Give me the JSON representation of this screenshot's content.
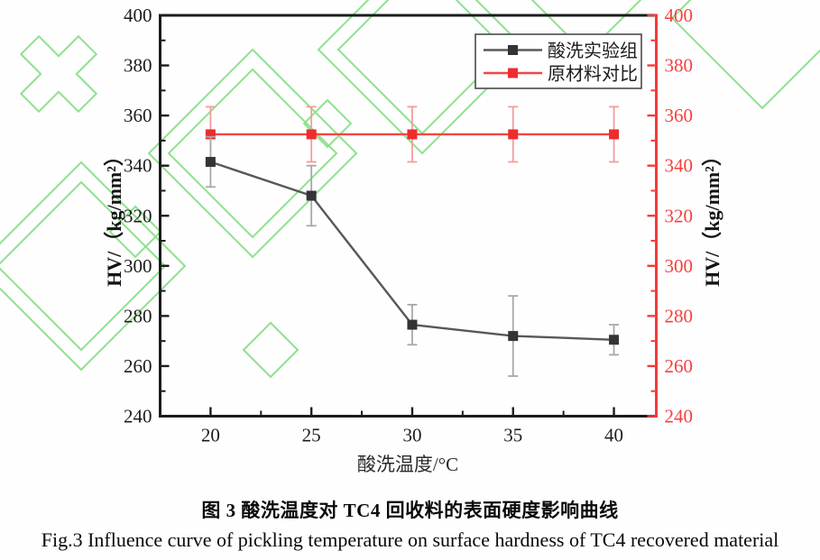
{
  "figure": {
    "caption_zh": "图 3 酸洗温度对 TC4 回收料的表面硬度影响曲线",
    "caption_en": "Fig.3 Influence curve of pickling temperature on surface hardness of TC4 recovered material"
  },
  "chart_data": {
    "type": "line",
    "x": [
      20,
      25,
      30,
      35,
      40
    ],
    "series": [
      {
        "name": "酸洗实验组",
        "values": [
          341.5,
          328,
          276.5,
          272,
          270.5
        ],
        "errors": [
          10,
          12,
          8,
          16,
          6
        ],
        "line_color": "#585858",
        "marker_color": "#343434",
        "errorbar_color": "#a8a8a8"
      },
      {
        "name": "原材料对比",
        "values": [
          352.5,
          352.5,
          352.5,
          352.5,
          352.5
        ],
        "errors": [
          11,
          11,
          11,
          11,
          11
        ],
        "line_color": "#f54545",
        "marker_color": "#ed2d2d",
        "errorbar_color": "#f59c9c"
      }
    ],
    "xlabel": "酸洗温度/°C",
    "ylabel_left": "HV/（kg/mm²）",
    "ylabel_right": "HV/（kg/mm²）",
    "xlim": [
      17.5,
      42.1
    ],
    "ylim": [
      240,
      400
    ],
    "x_major_ticks": [
      20,
      25,
      30,
      35,
      40
    ],
    "x_minor_ticks": [
      22.5,
      27.5,
      32.5,
      37.5
    ],
    "y_major_ticks": [
      240,
      260,
      280,
      300,
      320,
      340,
      360,
      380,
      400
    ],
    "y_minor_step": 10,
    "grid": false,
    "legend_position": "top-right",
    "axis_colors": {
      "left": "#1c1c1c",
      "right": "#f23b3b"
    },
    "watermark_color": "#8fe18f"
  }
}
